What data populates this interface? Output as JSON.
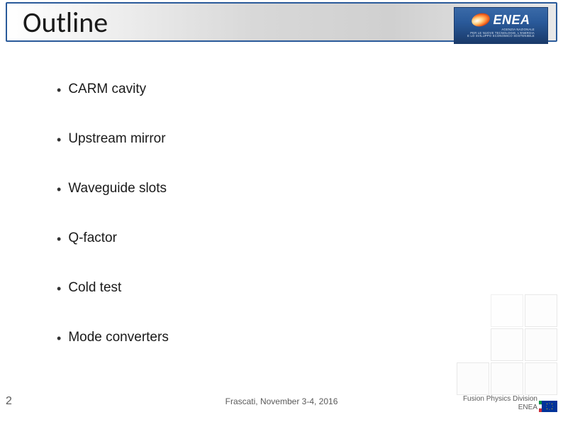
{
  "slide": {
    "title": "Outline",
    "bullets": [
      "CARM cavity",
      "Upstream mirror",
      "Waveguide slots",
      "Q-factor",
      "Cold test",
      "Mode converters"
    ],
    "page_number": "2",
    "footer_center": "Frascati, November 3-4, 2016",
    "footer_org_line1": "Fusion Physics Division",
    "footer_org_line2": "ENEA"
  },
  "logo": {
    "name": "ENEA",
    "tagline_l1": "AGENZIA NAZIONALE",
    "tagline_l2": "PER LE NUOVE TECNOLOGIE, L'ENERGIA",
    "tagline_l3": "E LO SVILUPPO ECONOMICO SOSTENIBILE"
  },
  "styling": {
    "title_border_color": "#2a5a9a",
    "title_font_size_pt": 30,
    "bullet_font_size_pt": 14,
    "text_color": "#1a1a1a",
    "footer_color": "#5a5a5a",
    "background": "#ffffff",
    "title_gradient_from": "#ffffff",
    "title_gradient_to": "#d0d0d0",
    "logo_bg_from": "#3a6aa8",
    "logo_bg_to": "#1a3a6a"
  }
}
